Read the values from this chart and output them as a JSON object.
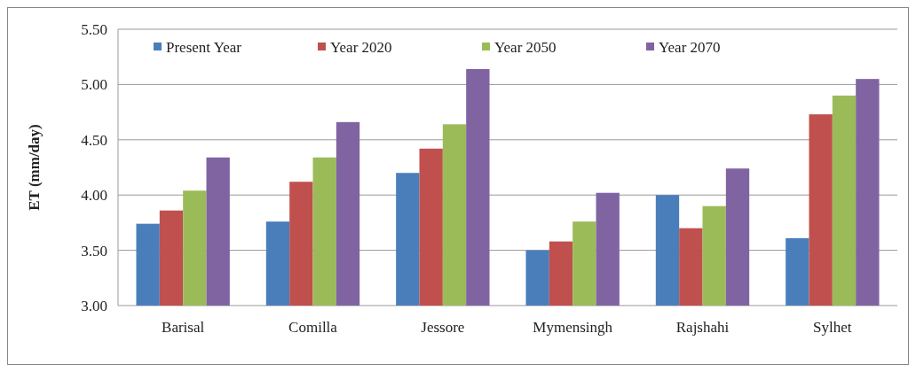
{
  "chart_data": {
    "type": "bar",
    "ylabel": "ET (mm/day)",
    "categories": [
      "Barisal",
      "Comilla",
      "Jessore",
      "Mymensingh",
      "Rajshahi",
      "Sylhet"
    ],
    "series": [
      {
        "name": "Present Year",
        "color": "#4a7ebb",
        "values": [
          3.74,
          3.76,
          4.2,
          3.5,
          4.0,
          3.61
        ]
      },
      {
        "name": "Year 2020",
        "color": "#c0504d",
        "values": [
          3.86,
          4.12,
          4.42,
          3.58,
          3.7,
          4.73
        ]
      },
      {
        "name": "Year 2050",
        "color": "#9bbb59",
        "values": [
          4.04,
          4.34,
          4.64,
          3.76,
          3.9,
          4.9
        ]
      },
      {
        "name": "Year 2070",
        "color": "#8064a2",
        "values": [
          4.34,
          4.66,
          5.14,
          4.02,
          4.24,
          5.05
        ]
      }
    ],
    "ylim": [
      3,
      5.5
    ],
    "yticks": [
      {
        "value": 3,
        "label": "3.00"
      },
      {
        "value": 3.5,
        "label": "3.50"
      },
      {
        "value": 4,
        "label": "4.00"
      },
      {
        "value": 4.5,
        "label": "4.50"
      },
      {
        "value": 5,
        "label": "5.00"
      },
      {
        "value": 5.5,
        "label": "5.50"
      }
    ],
    "grid": "y",
    "legend": "top left"
  }
}
